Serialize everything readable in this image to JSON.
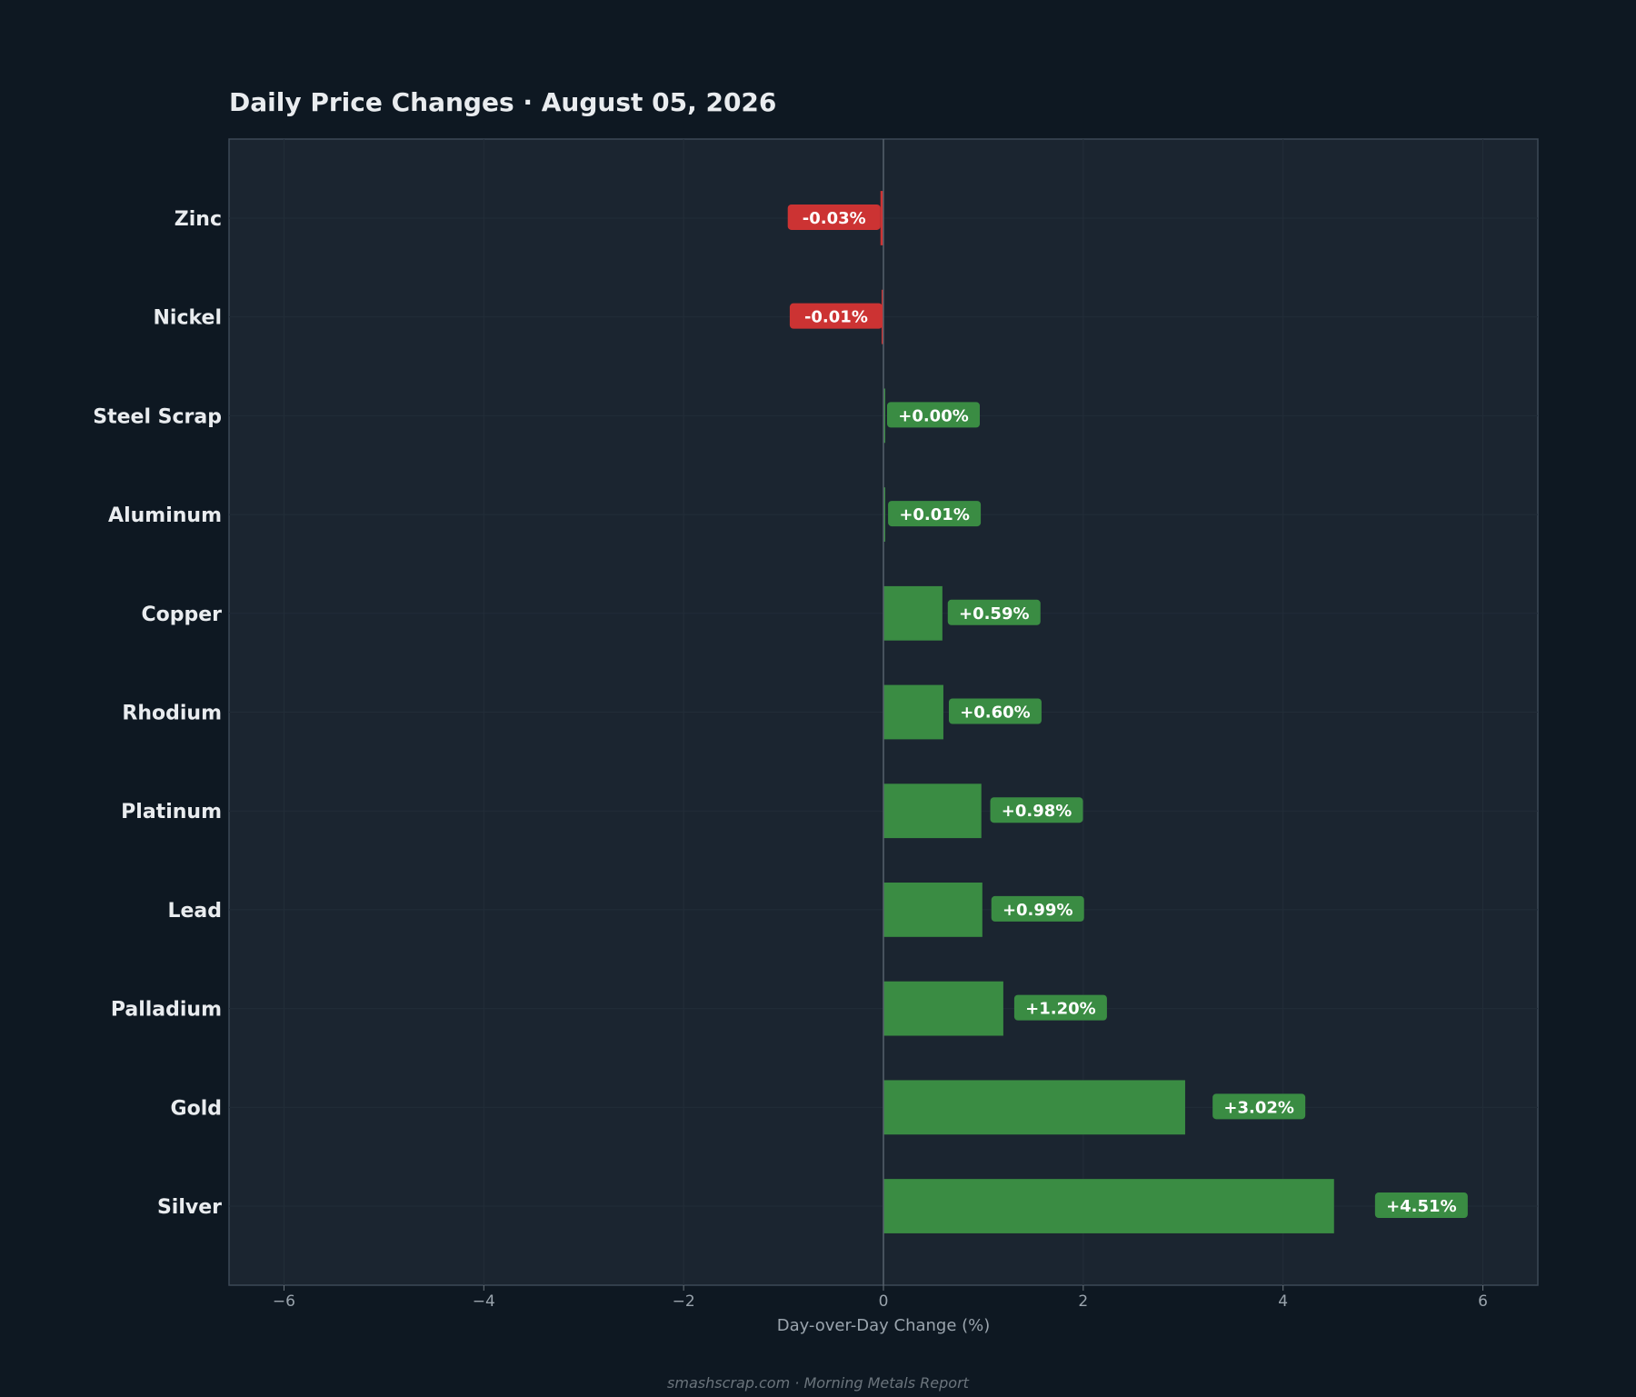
{
  "chart_data": {
    "type": "bar",
    "orientation": "horizontal",
    "title": "Daily Price Changes  ·  August 05, 2026",
    "xlabel": "Day-over-Day Change (%)",
    "ylabel": "",
    "xlim": [
      -6.55,
      6.55
    ],
    "xticks": [
      -6,
      -4,
      -2,
      0,
      2,
      4,
      6
    ],
    "xtick_labels": [
      "−6",
      "−4",
      "−2",
      "0",
      "2",
      "4",
      "6"
    ],
    "categories": [
      "Zinc",
      "Nickel",
      "Steel Scrap",
      "Aluminum",
      "Copper",
      "Rhodium",
      "Platinum",
      "Lead",
      "Palladium",
      "Gold",
      "Silver"
    ],
    "values": [
      -0.03,
      -0.01,
      0.0,
      0.01,
      0.59,
      0.6,
      0.98,
      0.99,
      1.2,
      3.02,
      4.51
    ],
    "value_labels": [
      "-0.03%",
      "-0.01%",
      "+0.00%",
      "+0.01%",
      "+0.59%",
      "+0.60%",
      "+0.98%",
      "+0.99%",
      "+1.20%",
      "+3.02%",
      "+4.51%"
    ],
    "grid": true,
    "colors": {
      "positive": "#3a8c43",
      "negative": "#cc3333",
      "background": "#0e1822",
      "plot_background": "#1b2530"
    }
  },
  "footer": "smashscrap.com  ·  Morning Metals Report"
}
